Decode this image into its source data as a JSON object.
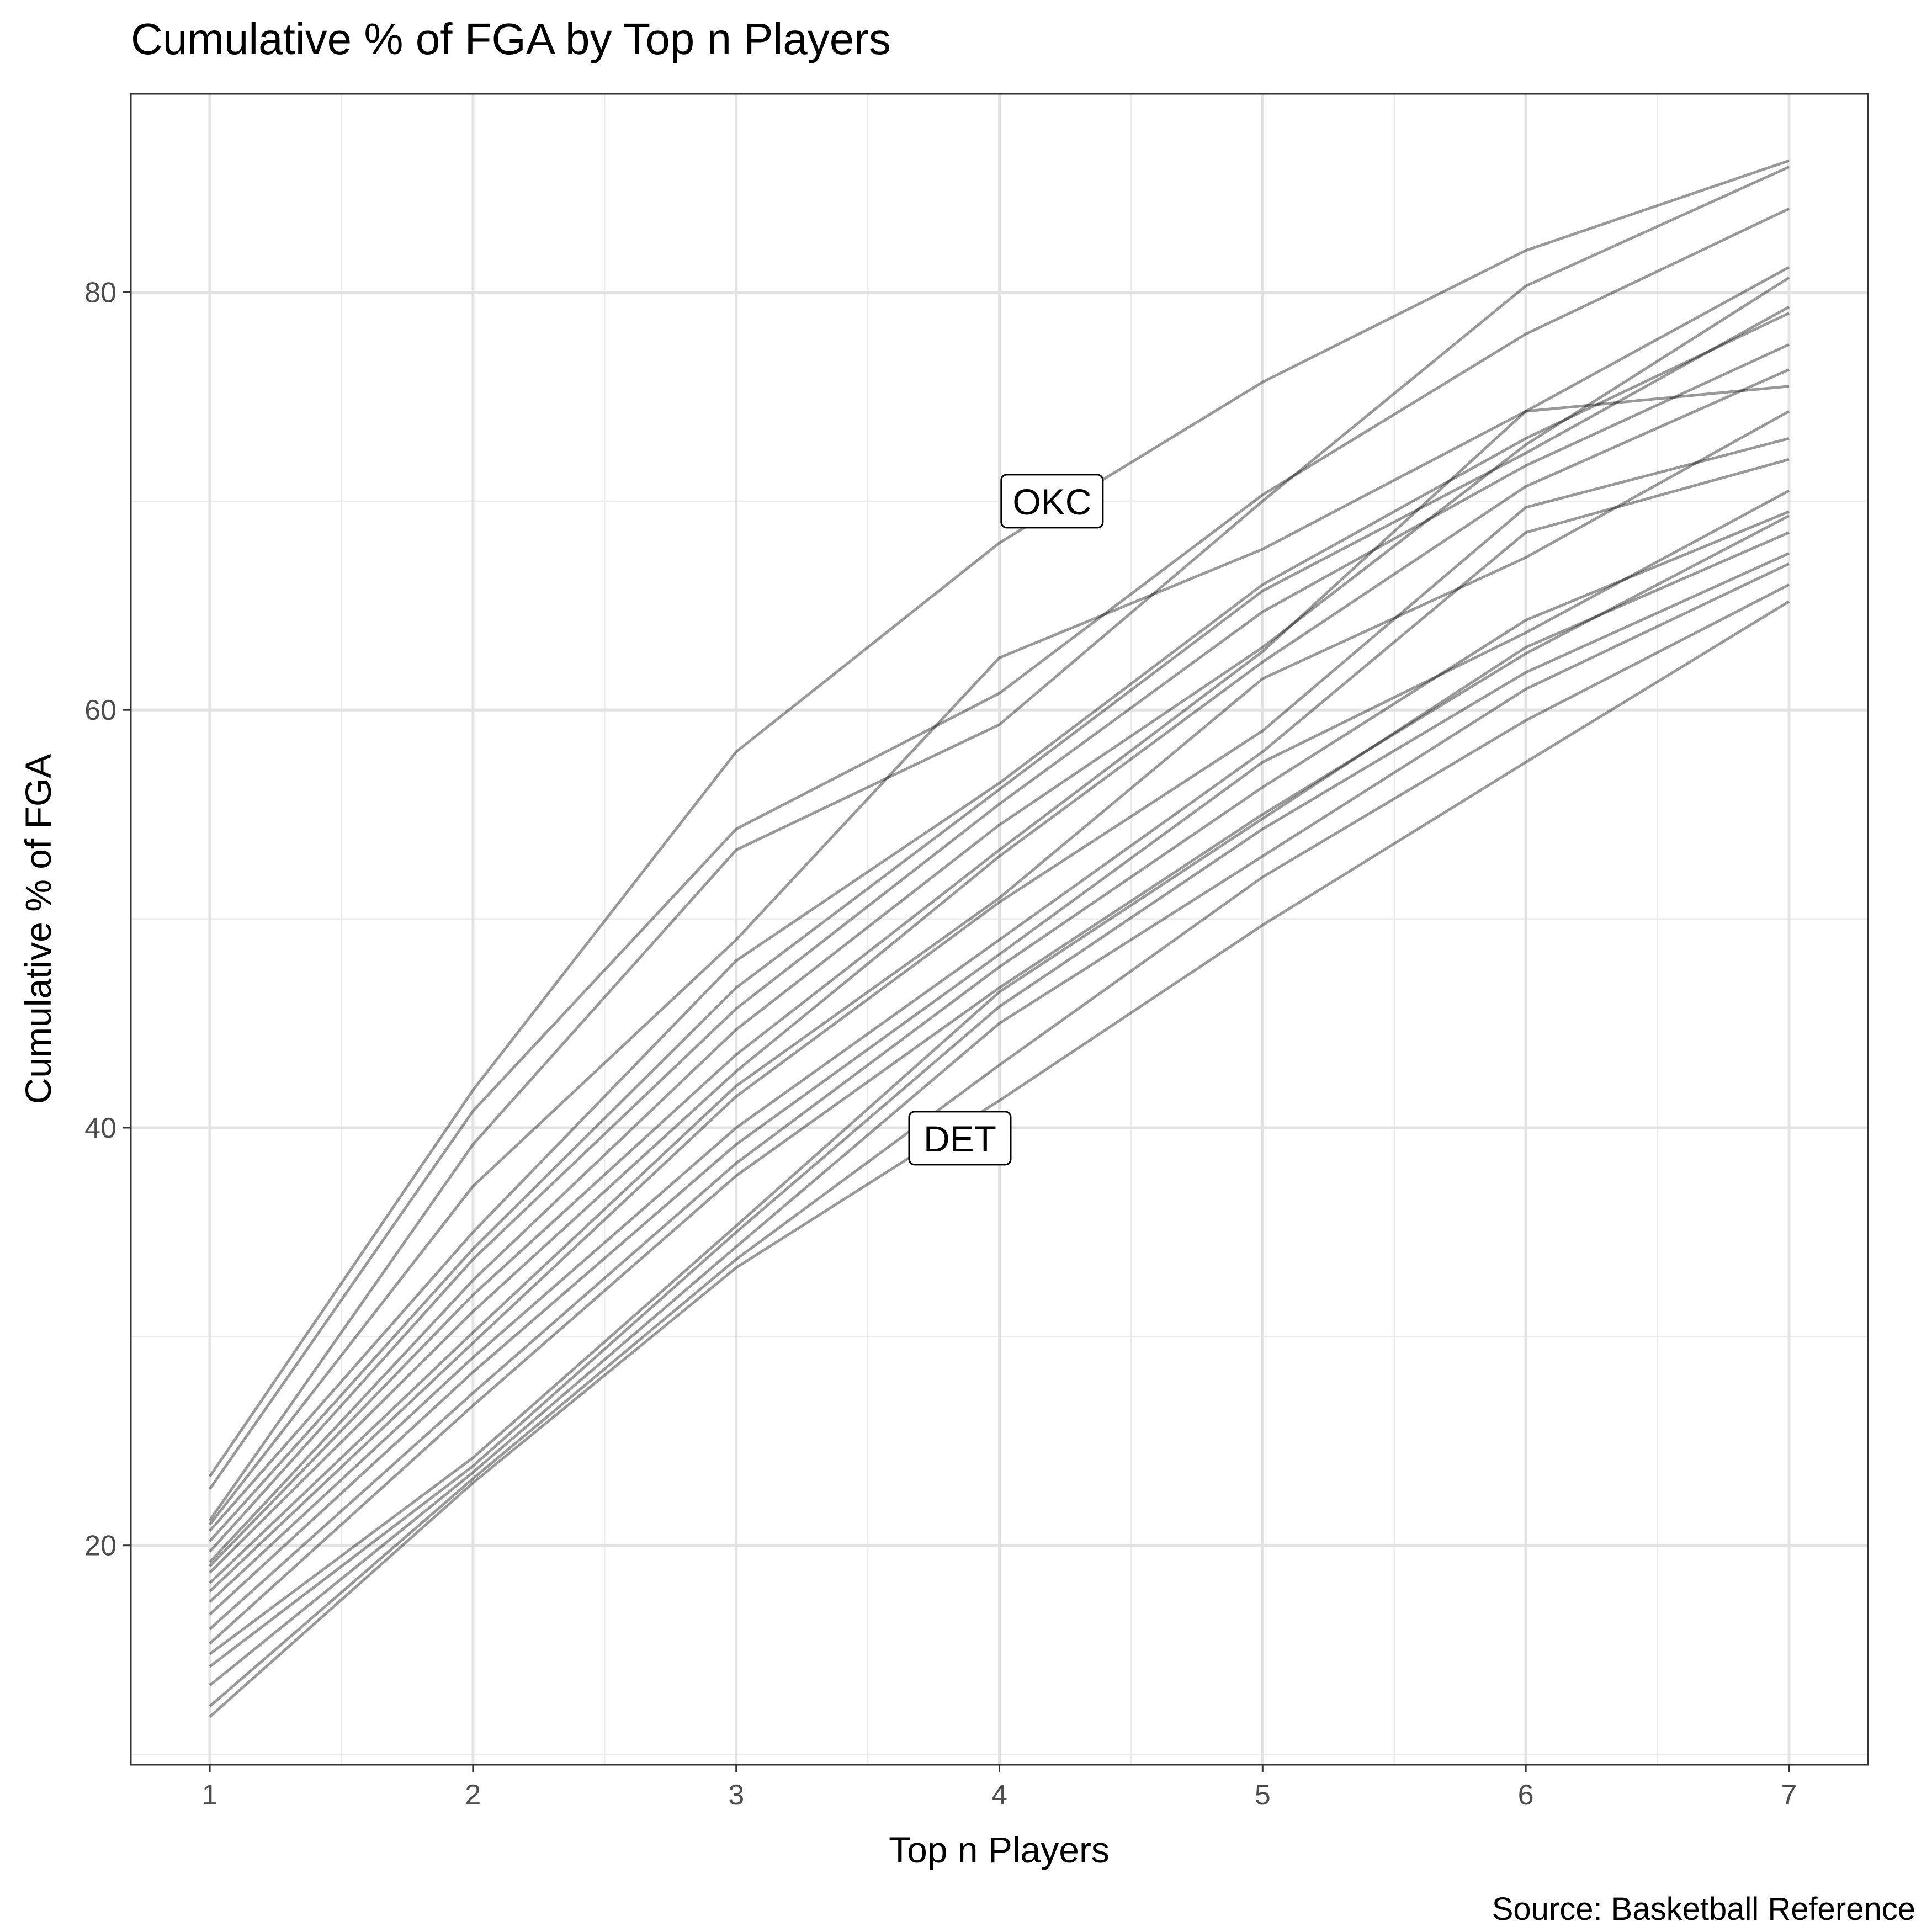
{
  "chart_data": {
    "type": "line",
    "title": "Cumulative % of FGA by Top n Players",
    "xlabel": "Top n Players",
    "ylabel": "Cumulative % of FGA",
    "caption": "Source: Basketball Reference",
    "x": [
      1,
      2,
      3,
      4,
      5,
      6,
      7
    ],
    "xlim": [
      0.7,
      7.3
    ],
    "ylim": [
      9.5,
      89.5
    ],
    "x_ticks": [
      "1",
      "2",
      "3",
      "4",
      "5",
      "6",
      "7"
    ],
    "y_ticks": [
      "20",
      "40",
      "60",
      "80"
    ],
    "y_tick_values": [
      20,
      40,
      60,
      80
    ],
    "grid": true,
    "line_color": "#000000",
    "line_opacity": 0.4,
    "series": [
      {
        "values": [
          23.3,
          41.8,
          58.0,
          68.0,
          75.7,
          82.0,
          86.3
        ]
      },
      {
        "values": [
          22.7,
          40.8,
          54.3,
          60.8,
          70.3,
          78.0,
          84.0
        ]
      },
      {
        "values": [
          21.2,
          39.2,
          53.3,
          59.3,
          70.0,
          80.3,
          86.0
        ]
      },
      {
        "values": [
          21.0,
          37.2,
          49.0,
          62.5,
          67.7,
          74.3,
          81.2
        ]
      },
      {
        "values": [
          20.7,
          35.0,
          48.0,
          56.5,
          66.0,
          73.0,
          79.0
        ]
      },
      {
        "values": [
          20.2,
          34.2,
          46.7,
          56.2,
          65.7,
          72.3,
          79.3
        ]
      },
      {
        "values": [
          19.7,
          33.7,
          45.7,
          55.5,
          64.7,
          71.7,
          77.5
        ]
      },
      {
        "values": [
          19.2,
          32.7,
          44.7,
          54.5,
          63.0,
          72.7,
          80.7
        ]
      },
      {
        "values": [
          19.0,
          32.0,
          43.5,
          53.3,
          62.8,
          74.3,
          75.5
        ]
      },
      {
        "values": [
          18.7,
          31.2,
          42.7,
          53.0,
          62.3,
          70.7,
          76.3
        ]
      },
      {
        "values": [
          18.2,
          30.2,
          42.0,
          51.0,
          61.5,
          67.3,
          74.3
        ]
      },
      {
        "values": [
          17.8,
          29.7,
          41.5,
          50.8,
          59.0,
          69.7,
          73.0
        ]
      },
      {
        "values": [
          17.3,
          29.0,
          40.0,
          49.0,
          58.0,
          68.5,
          72.0
        ]
      },
      {
        "values": [
          16.7,
          28.3,
          39.2,
          48.3,
          57.5,
          63.7,
          70.5
        ]
      },
      {
        "values": [
          16.0,
          27.3,
          38.3,
          47.7,
          56.3,
          64.3,
          69.5
        ]
      },
      {
        "values": [
          15.3,
          26.7,
          37.7,
          46.7,
          55.0,
          62.7,
          69.3
        ]
      },
      {
        "values": [
          14.8,
          24.2,
          35.3,
          46.5,
          54.8,
          63.0,
          68.5
        ]
      },
      {
        "values": [
          14.2,
          23.8,
          35.0,
          45.8,
          54.3,
          61.8,
          67.5
        ]
      },
      {
        "values": [
          13.3,
          23.5,
          34.3,
          45.0,
          53.0,
          61.0,
          67.0
        ]
      },
      {
        "values": [
          12.3,
          23.2,
          33.7,
          43.0,
          52.0,
          59.5,
          66.0
        ]
      },
      {
        "values": [
          11.8,
          23.0,
          33.3,
          41.3,
          49.7,
          57.5,
          65.2
        ]
      }
    ],
    "annotations": [
      {
        "text": "OKC",
        "x": 4.2,
        "y": 70.0
      },
      {
        "text": "DET",
        "x": 3.85,
        "y": 39.5
      }
    ]
  }
}
